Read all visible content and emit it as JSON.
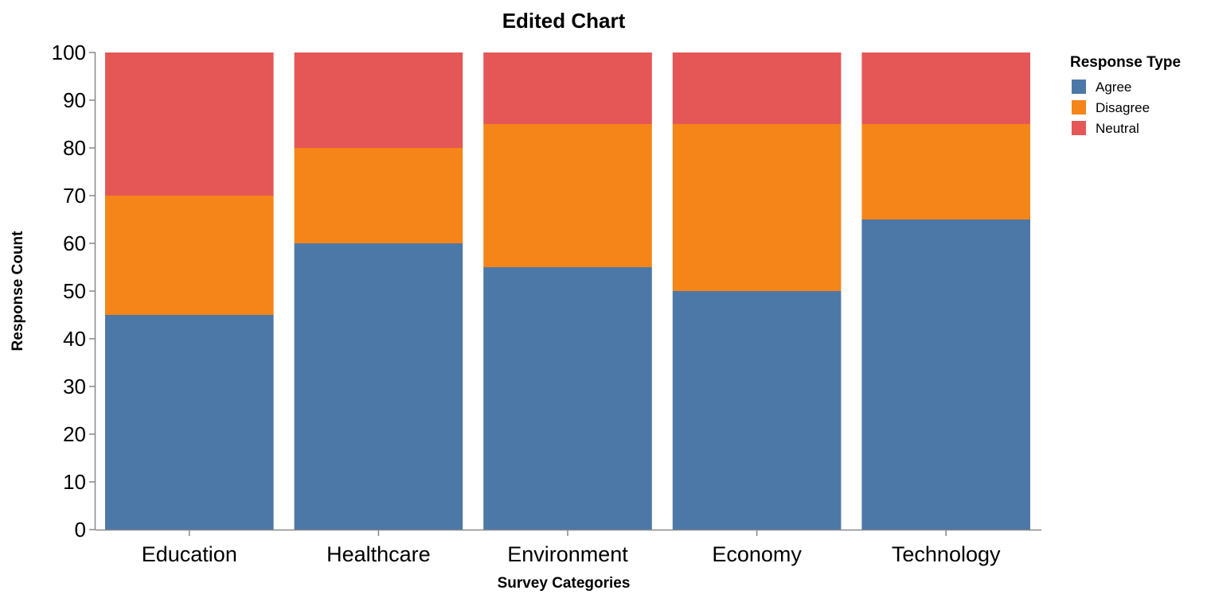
{
  "chart_data": {
    "type": "bar",
    "stacked": true,
    "title": "Edited Chart",
    "xlabel": "Survey Categories",
    "ylabel": "Response Count",
    "ylim": [
      0,
      100
    ],
    "yticks": [
      "0",
      "10",
      "20",
      "30",
      "40",
      "50",
      "60",
      "70",
      "80",
      "90",
      "100"
    ],
    "categories": [
      "Education",
      "Healthcare",
      "Environment",
      "Economy",
      "Technology"
    ],
    "series": [
      {
        "name": "Agree",
        "color": "#4c78a8",
        "values": [
          45,
          60,
          55,
          50,
          65
        ]
      },
      {
        "name": "Disagree",
        "color": "#f58518",
        "values": [
          25,
          20,
          30,
          35,
          20
        ]
      },
      {
        "name": "Neutral",
        "color": "#e45756",
        "values": [
          30,
          20,
          15,
          15,
          15
        ]
      }
    ],
    "legend": {
      "title": "Response Type",
      "placement": "top-right"
    },
    "grid": false
  }
}
